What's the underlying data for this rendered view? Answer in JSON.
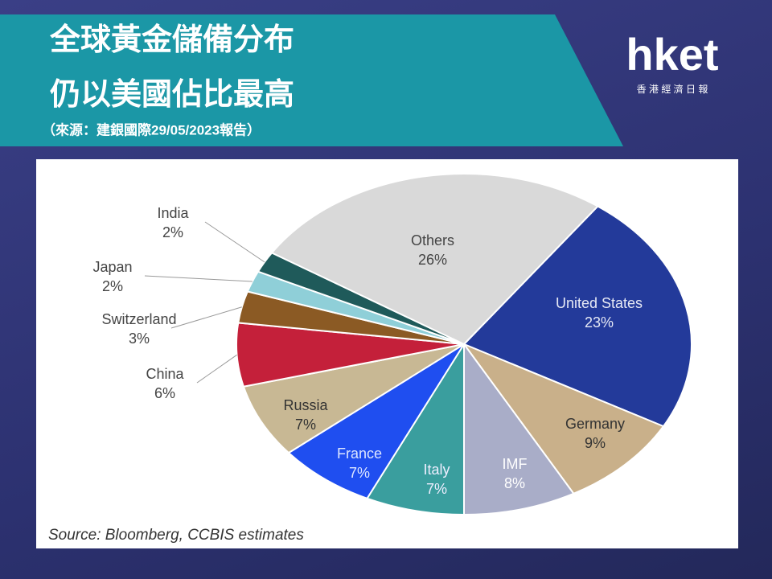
{
  "header": {
    "title_lines": [
      "全球黃金儲備分布",
      "仍以美國佔比最高"
    ],
    "subtitle": "（來源：建銀國際29/05/2023報告）",
    "logo": "hket",
    "logo_sub": "香 港 經 濟 日 報"
  },
  "chart_data": {
    "type": "pie",
    "categories": [
      "United States",
      "Germany",
      "IMF",
      "Italy",
      "France",
      "Russia",
      "China",
      "Switzerland",
      "Japan",
      "India",
      "Others"
    ],
    "values": [
      23,
      9,
      8,
      7,
      7,
      7,
      6,
      3,
      2,
      2,
      26
    ],
    "value_labels": [
      "23%",
      "9%",
      "8%",
      "7%",
      "7%",
      "7%",
      "6%",
      "3%",
      "2%",
      "2%",
      "26%"
    ],
    "colors": [
      "#233a9a",
      "#c9b08a",
      "#a9adc8",
      "#3a9e9e",
      "#1f4ef0",
      "#c8b894",
      "#c4203a",
      "#8b5a24",
      "#8fcfd8",
      "#1f5a5a",
      "#d9d9d9"
    ],
    "source": "Source: Bloomberg, CCBIS estimates"
  }
}
